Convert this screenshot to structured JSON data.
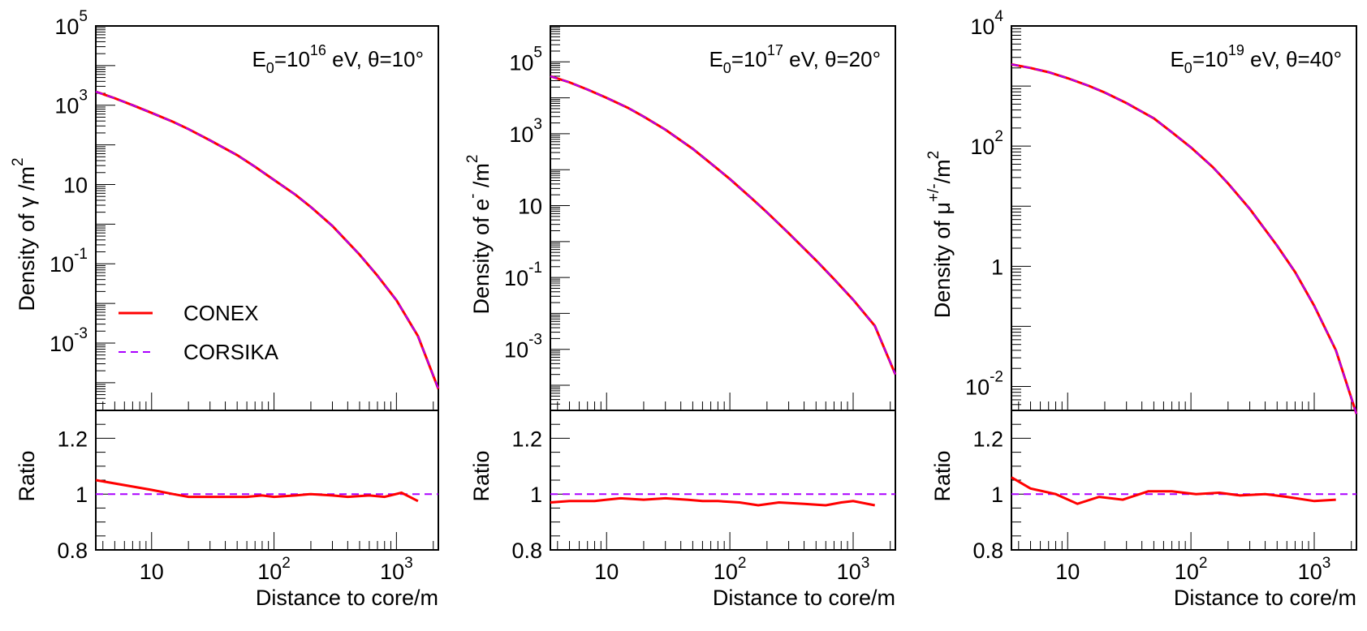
{
  "chart_data": [
    {
      "type": "line",
      "annotation": {
        "e0_base": "E",
        "e0_sub": "0",
        "e0_eq": "=10",
        "e0_exp": "16",
        "rest": " eV, θ=10°"
      },
      "ylabel": {
        "text": "Density of  γ /m",
        "sup": "2"
      },
      "ratio_ylabel": "Ratio",
      "xlabel": "Distance to core/m",
      "xlim": [
        3.5,
        2200
      ],
      "ylim": [
        2e-05,
        100000
      ],
      "ratio_ylim": [
        0.8,
        1.3
      ],
      "x_ticks": [
        {
          "base": "10",
          "exp": "",
          "value": 10
        },
        {
          "base": "10",
          "exp": "2",
          "value": 100
        },
        {
          "base": "10",
          "exp": "3",
          "value": 1000
        }
      ],
      "y_ticks": [
        {
          "base": "10",
          "exp": "5",
          "value": 100000
        },
        {
          "base": "10",
          "exp": "3",
          "value": 1000
        },
        {
          "base": "10",
          "exp": "",
          "value": 10
        },
        {
          "base": "10",
          "exp": "-1",
          "value": 0.1
        },
        {
          "base": "10",
          "exp": "-3",
          "value": 0.001
        }
      ],
      "ratio_ticks": [
        {
          "label": "1.2",
          "value": 1.2
        },
        {
          "label": "1",
          "value": 1.0
        },
        {
          "label": "0.8",
          "value": 0.8
        }
      ],
      "legend": {
        "conex": "CONEX",
        "corsika": "CORSIKA"
      },
      "series": [
        {
          "name": "CONEX",
          "color": "#ff0000",
          "style": "solid",
          "x": [
            3.5,
            5,
            7,
            10,
            15,
            20,
            30,
            50,
            70,
            100,
            150,
            200,
            300,
            500,
            700,
            1000,
            1500,
            2200
          ],
          "y": [
            2200,
            1500,
            1000,
            640,
            380,
            250,
            130,
            55,
            28,
            13,
            5.5,
            2.7,
            0.9,
            0.17,
            0.05,
            0.012,
            0.0015,
            7e-05
          ]
        },
        {
          "name": "CORSIKA",
          "color": "#aa00ff",
          "style": "dashed",
          "x": [
            3.5,
            5,
            7,
            10,
            15,
            20,
            30,
            50,
            70,
            100,
            150,
            200,
            300,
            500,
            700,
            1000,
            1500,
            2200
          ],
          "y": [
            2200,
            1500,
            1000,
            640,
            380,
            250,
            130,
            55,
            28,
            13,
            5.5,
            2.7,
            0.9,
            0.17,
            0.05,
            0.012,
            0.0015,
            7e-05
          ]
        }
      ],
      "ratio": {
        "x": [
          3.5,
          10,
          15,
          20,
          30,
          40,
          60,
          80,
          100,
          150,
          200,
          300,
          400,
          600,
          800,
          1100,
          1500
        ],
        "y": [
          1.05,
          1.015,
          1.0,
          0.99,
          0.99,
          0.99,
          0.99,
          0.995,
          0.99,
          0.995,
          1.0,
          0.995,
          0.99,
          0.995,
          0.99,
          1.005,
          0.975
        ]
      }
    },
    {
      "type": "line",
      "annotation": {
        "e0_base": "E",
        "e0_sub": "0",
        "e0_eq": "=10",
        "e0_exp": "17",
        "rest": " eV, θ=20°"
      },
      "ylabel": {
        "text": "Density of e",
        "sup1": "-",
        "text2": " /m",
        "sup": "2"
      },
      "ratio_ylabel": "Ratio",
      "xlabel": "Distance to core/m",
      "xlim": [
        3.5,
        2200
      ],
      "ylim": [
        2e-05,
        1000000
      ],
      "ratio_ylim": [
        0.8,
        1.3
      ],
      "x_ticks": [
        {
          "base": "10",
          "exp": "",
          "value": 10
        },
        {
          "base": "10",
          "exp": "2",
          "value": 100
        },
        {
          "base": "10",
          "exp": "3",
          "value": 1000
        }
      ],
      "y_ticks": [
        {
          "base": "10",
          "exp": "5",
          "value": 100000
        },
        {
          "base": "10",
          "exp": "3",
          "value": 1000
        },
        {
          "base": "10",
          "exp": "",
          "value": 10
        },
        {
          "base": "10",
          "exp": "-1",
          "value": 0.1
        },
        {
          "base": "10",
          "exp": "-3",
          "value": 0.001
        }
      ],
      "ratio_ticks": [
        {
          "label": "1.2",
          "value": 1.2
        },
        {
          "label": "1",
          "value": 1.0
        },
        {
          "label": "0.8",
          "value": 0.8
        }
      ],
      "series": [
        {
          "name": "CONEX",
          "color": "#ff0000",
          "style": "solid",
          "x": [
            3.5,
            5,
            7,
            10,
            15,
            20,
            30,
            50,
            70,
            100,
            150,
            200,
            300,
            500,
            700,
            1000,
            1500,
            2200
          ],
          "y": [
            40000,
            27000,
            17000,
            10000,
            5200,
            3000,
            1300,
            380,
            150,
            55,
            16,
            6.5,
            1.7,
            0.3,
            0.09,
            0.024,
            0.0045,
            0.0002
          ]
        },
        {
          "name": "CORSIKA",
          "color": "#aa00ff",
          "style": "dashed",
          "x": [
            3.5,
            5,
            7,
            10,
            15,
            20,
            30,
            50,
            70,
            100,
            150,
            200,
            300,
            500,
            700,
            1000,
            1500,
            2200
          ],
          "y": [
            40000,
            27000,
            17000,
            10000,
            5200,
            3000,
            1300,
            380,
            150,
            55,
            16,
            6.5,
            1.7,
            0.3,
            0.09,
            0.024,
            0.0045,
            0.0002
          ]
        }
      ],
      "ratio": {
        "x": [
          3.5,
          5,
          8,
          10,
          13,
          20,
          30,
          45,
          60,
          80,
          120,
          170,
          250,
          400,
          600,
          800,
          1000,
          1500
        ],
        "y": [
          0.97,
          0.975,
          0.975,
          0.98,
          0.985,
          0.98,
          0.985,
          0.98,
          0.975,
          0.975,
          0.97,
          0.96,
          0.97,
          0.965,
          0.96,
          0.97,
          0.975,
          0.96
        ]
      }
    },
    {
      "type": "line",
      "annotation": {
        "e0_base": "E",
        "e0_sub": "0",
        "e0_eq": "=10",
        "e0_exp": "19",
        "rest": " eV, θ=40°"
      },
      "ylabel": {
        "text": "Density of  μ",
        "sup1": "+/-",
        "text2": "/m",
        "sup": "2"
      },
      "ratio_ylabel": "Ratio",
      "xlabel": "Distance to core/m",
      "xlim": [
        3.5,
        2200
      ],
      "ylim": [
        0.004,
        10000
      ],
      "ratio_ylim": [
        0.8,
        1.3
      ],
      "x_ticks": [
        {
          "base": "10",
          "exp": "",
          "value": 10
        },
        {
          "base": "10",
          "exp": "2",
          "value": 100
        },
        {
          "base": "10",
          "exp": "3",
          "value": 1000
        }
      ],
      "y_ticks": [
        {
          "base": "10",
          "exp": "4",
          "value": 10000
        },
        {
          "base": "10",
          "exp": "2",
          "value": 100
        },
        {
          "base": "1",
          "exp": "",
          "value": 1
        },
        {
          "base": "10",
          "exp": "-2",
          "value": 0.01
        }
      ],
      "ratio_ticks": [
        {
          "label": "1.2",
          "value": 1.2
        },
        {
          "label": "1",
          "value": 1.0
        },
        {
          "label": "0.8",
          "value": 0.8
        }
      ],
      "series": [
        {
          "name": "CONEX",
          "color": "#ff0000",
          "style": "solid",
          "x": [
            3.5,
            5,
            7,
            10,
            15,
            20,
            30,
            50,
            70,
            100,
            150,
            200,
            300,
            500,
            700,
            1000,
            1500,
            2200
          ],
          "y": [
            2300,
            2000,
            1700,
            1350,
            1000,
            780,
            520,
            290,
            170,
            95,
            45,
            24,
            9,
            2.2,
            0.8,
            0.22,
            0.04,
            0.0035
          ]
        },
        {
          "name": "CORSIKA",
          "color": "#aa00ff",
          "style": "dashed",
          "x": [
            3.5,
            5,
            7,
            10,
            15,
            20,
            30,
            50,
            70,
            100,
            150,
            200,
            300,
            500,
            700,
            1000,
            1500,
            2200
          ],
          "y": [
            2300,
            2000,
            1700,
            1350,
            1000,
            780,
            520,
            290,
            170,
            95,
            45,
            24,
            9,
            2.2,
            0.8,
            0.22,
            0.04,
            0.0035
          ]
        }
      ],
      "ratio": {
        "x": [
          3.5,
          5,
          8,
          12,
          18,
          28,
          45,
          70,
          110,
          170,
          250,
          400,
          600,
          1000,
          1500
        ],
        "y": [
          1.06,
          1.02,
          1.0,
          0.965,
          0.99,
          0.98,
          1.01,
          1.01,
          1.0,
          1.005,
          0.995,
          1.0,
          0.99,
          0.975,
          0.98
        ]
      }
    }
  ]
}
